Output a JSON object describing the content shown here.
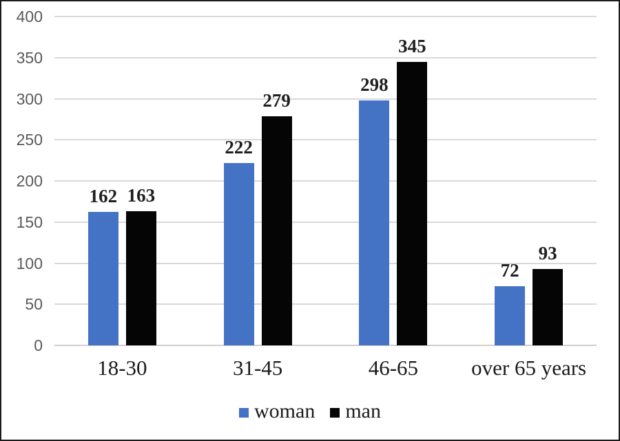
{
  "chart_data": {
    "type": "bar",
    "title": "",
    "xlabel": "",
    "ylabel": "",
    "categories": [
      "18-30",
      "31-45",
      "46-65",
      "over 65 years"
    ],
    "series": [
      {
        "name": "woman",
        "color": "#4472c4",
        "values": [
          162,
          222,
          298,
          72
        ]
      },
      {
        "name": "man",
        "color": "#050505",
        "values": [
          163,
          279,
          345,
          93
        ]
      }
    ],
    "ylim": [
      0,
      400
    ],
    "yticks": [
      400,
      350,
      300,
      250,
      200,
      150,
      100,
      50,
      0
    ],
    "grid": true,
    "data_labels": true,
    "legend_position": "bottom"
  },
  "style": {
    "background": "#ffffff",
    "frame_color": "#1a1a1a",
    "gridline_color": "#d9d9d9",
    "axis_line_color": "#cfcfcf",
    "tick_label_color": "#595959",
    "data_label_color": "#1f1f1f",
    "category_label_color": "#1a1a1a"
  }
}
